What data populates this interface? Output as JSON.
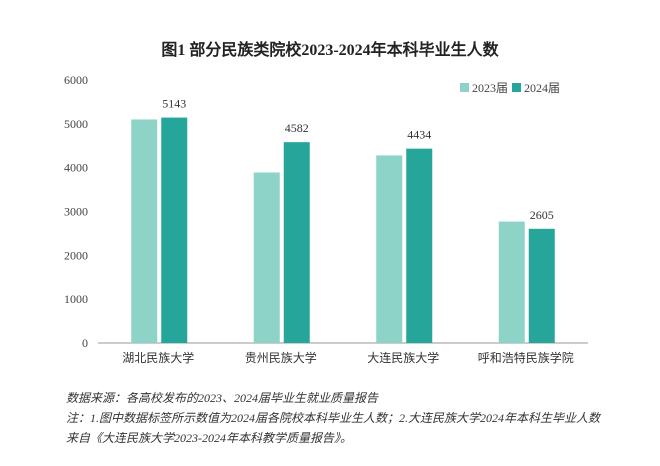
{
  "chart_data": {
    "type": "bar",
    "title": "图1  部分民族类院校2023-2024年本科毕业生人数",
    "categories": [
      "湖北民族大学",
      "贵州民族大学",
      "大连民族大学",
      "呼和浩特民族学院"
    ],
    "series": [
      {
        "name": "2023届",
        "color": "#8dd3c7",
        "values": [
          5100,
          3890,
          4280,
          2770
        ]
      },
      {
        "name": "2024届",
        "color": "#26a69a",
        "values": [
          5143,
          4582,
          4434,
          2605
        ]
      }
    ],
    "data_labels": [
      "5143",
      "4582",
      "4434",
      "2605"
    ],
    "ylim": [
      0,
      6000
    ],
    "yticks": [
      0,
      1000,
      2000,
      3000,
      4000,
      5000,
      6000
    ],
    "grid": false,
    "legend": "top-right"
  },
  "notes": {
    "source": "数据来源：各高校发布的2023、2024届毕业生就业质量报告",
    "note": "注：1.图中数据标签所示数值为2024届各院校本科毕业生人数；2.大连民族大学2024年本科生毕业人数来自《大连民族大学2023-2024年本科教学质量报告》。"
  }
}
